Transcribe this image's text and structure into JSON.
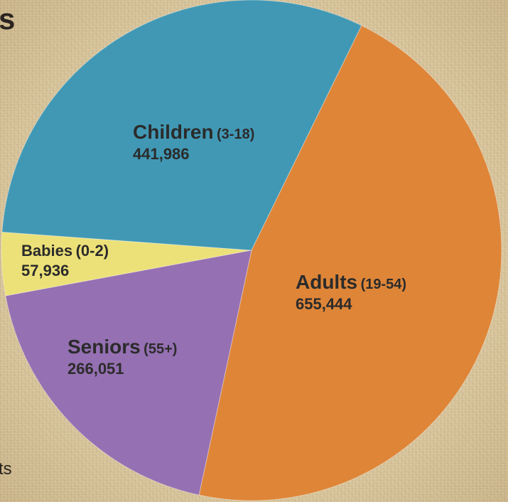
{
  "page": {
    "title_fragment": "s",
    "note_fragment": "ts"
  },
  "colors": {
    "Babies": "#ece178",
    "Children": "#4198b5",
    "Adults": "#de8538",
    "Seniors": "#9570b2"
  },
  "chart_data": {
    "type": "pie",
    "title": "",
    "slices": [
      {
        "name": "Babies",
        "range": "(0-2)",
        "value": 57936,
        "value_label": "57,936",
        "color": "#ece178"
      },
      {
        "name": "Children",
        "range": "(3-18)",
        "value": 441986,
        "value_label": "441,986",
        "color": "#4198b5"
      },
      {
        "name": "Adults",
        "range": "(19-54)",
        "value": 655444,
        "value_label": "655,444",
        "color": "#de8538"
      },
      {
        "name": "Seniors",
        "range": "(55+)",
        "value": 266051,
        "value_label": "266,051",
        "color": "#9570b2"
      }
    ],
    "legend": "none",
    "grid": false
  }
}
